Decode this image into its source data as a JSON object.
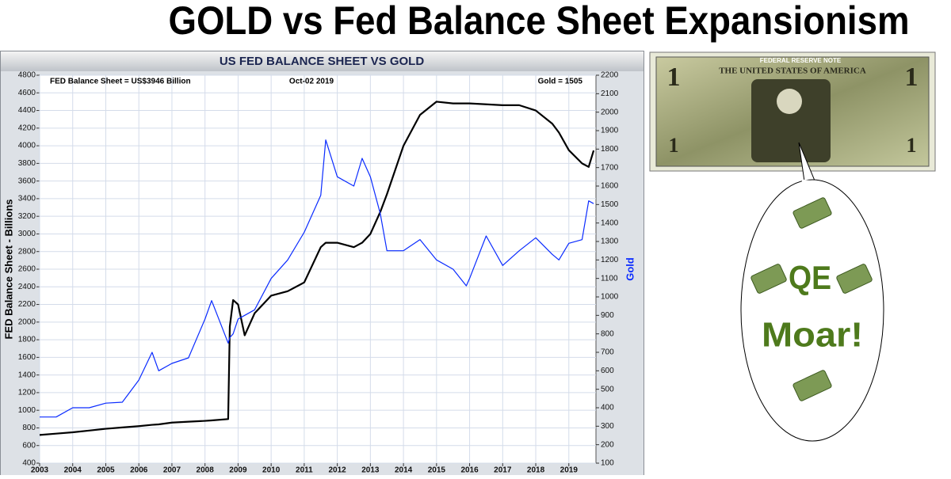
{
  "title": "GOLD  vs  Fed Balance Sheet Expansionism",
  "chart_data": {
    "type": "line",
    "title": "US FED BALANCE SHEET VS GOLD",
    "y_label": "FED Balance Sheet - Billions",
    "y2_label": "Gold",
    "annotations": [
      "FED Balance Sheet = US$3946 Billion",
      "Oct-02  2019",
      "Gold = 1505"
    ],
    "x": [
      2003,
      2003.5,
      2004,
      2004.5,
      2005,
      2005.5,
      2006,
      2006.4,
      2006.6,
      2007,
      2007.5,
      2008,
      2008.2,
      2008.7,
      2008.75,
      2008.85,
      2009,
      2009.2,
      2009.5,
      2010,
      2010.5,
      2011,
      2011.5,
      2011.65,
      2012,
      2012.5,
      2012.75,
      2013,
      2013.3,
      2013.5,
      2014,
      2014.5,
      2015,
      2015.5,
      2015.9,
      2016,
      2016.5,
      2017,
      2017.5,
      2018,
      2018.5,
      2018.7,
      2019,
      2019.4,
      2019.6,
      2019.75
    ],
    "series": [
      {
        "name": "FED Balance Sheet",
        "color": "#000000",
        "axis": "y",
        "values": [
          720,
          735,
          750,
          770,
          790,
          805,
          820,
          835,
          840,
          860,
          870,
          880,
          885,
          900,
          1950,
          2250,
          2200,
          1850,
          2100,
          2300,
          2350,
          2450,
          2850,
          2900,
          2900,
          2850,
          2900,
          3000,
          3250,
          3450,
          4000,
          4350,
          4500,
          4480,
          4480,
          4480,
          4470,
          4460,
          4460,
          4400,
          4250,
          4150,
          3950,
          3800,
          3760,
          3946
        ]
      },
      {
        "name": "Gold",
        "color": "#0a2bff",
        "axis": "y2",
        "values": [
          350,
          350,
          400,
          400,
          425,
          430,
          550,
          700,
          600,
          640,
          670,
          880,
          980,
          750,
          780,
          800,
          880,
          900,
          930,
          1100,
          1200,
          1350,
          1550,
          1850,
          1650,
          1600,
          1750,
          1650,
          1450,
          1250,
          1250,
          1310,
          1200,
          1150,
          1060,
          1100,
          1330,
          1170,
          1250,
          1320,
          1230,
          1200,
          1290,
          1310,
          1520,
          1505
        ]
      }
    ],
    "xlim": [
      2003,
      2019.82
    ],
    "xticks": [
      2003,
      2004,
      2005,
      2006,
      2007,
      2008,
      2009,
      2010,
      2011,
      2012,
      2013,
      2014,
      2015,
      2016,
      2017,
      2018,
      2019
    ],
    "ylim": [
      400,
      4800
    ],
    "yticks": [
      400,
      600,
      800,
      1000,
      1200,
      1400,
      1600,
      1800,
      2000,
      2200,
      2400,
      2600,
      2800,
      3000,
      3200,
      3400,
      3600,
      3800,
      4000,
      4200,
      4400,
      4600,
      4800
    ],
    "y2lim": [
      100,
      2200
    ],
    "y2ticks": [
      100,
      200,
      300,
      400,
      500,
      600,
      700,
      800,
      900,
      1000,
      1100,
      1200,
      1300,
      1400,
      1500,
      1600,
      1700,
      1800,
      1900,
      2000,
      2100,
      2200
    ],
    "grid": true
  },
  "dollar_bill": {
    "header": "FEDERAL RESERVE NOTE",
    "country": "THE UNITED STATES OF AMERICA",
    "denomination": "1"
  },
  "bubble": {
    "line1": "QE",
    "line2": "Moar!"
  }
}
